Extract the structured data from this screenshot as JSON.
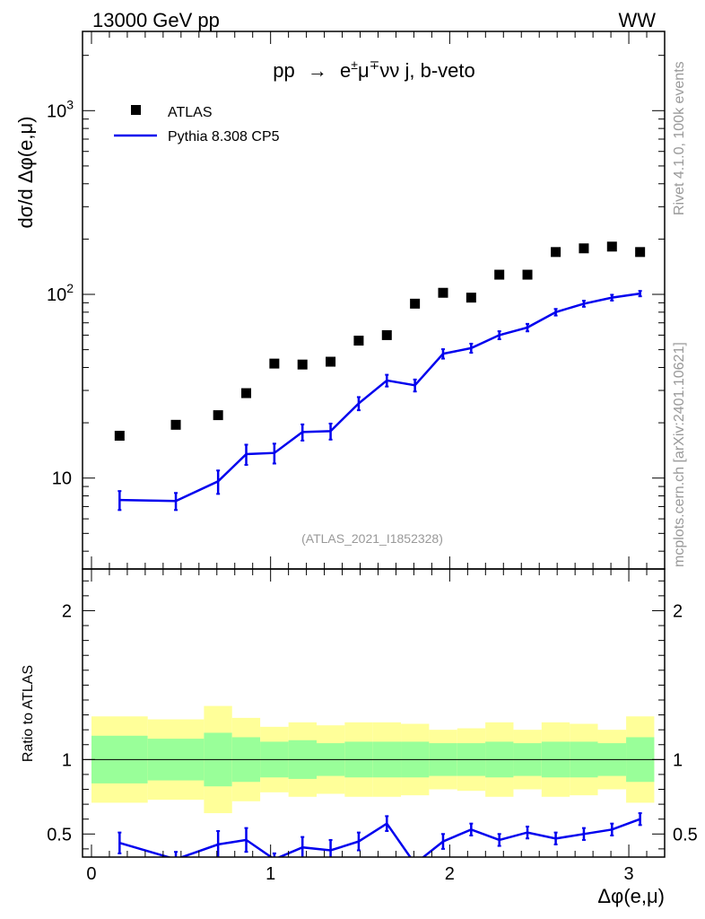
{
  "header": {
    "energy_label": "13000 GeV pp",
    "process_label": "WW"
  },
  "side_labels": {
    "rivet": "Rivet 4.1.0,  100k events",
    "mcplots": "mcplots.cern.ch [arXiv:2401.10621]"
  },
  "colors": {
    "mc_line": "#0000ee",
    "band_inner": "#99ff99",
    "band_outer": "#ffff99",
    "data_marker": "#000000",
    "analysis_label": "#999999"
  },
  "chart_data": {
    "type": "scatter",
    "title_parts": {
      "pp": "pp",
      "arrow": "→",
      "e": "e",
      "pm": "±",
      "mu": "μ",
      "mp": "∓",
      "rest": "νν j, b-veto"
    },
    "ylabel": "dσ/d Δφ(e,μ)",
    "xlabel": "Δφ(e,μ)",
    "analysis_id": "(ATLAS_2021_I1852328)",
    "xlim": [
      -0.05,
      3.2
    ],
    "ylim_main": [
      3.2,
      2700
    ],
    "ylim_ratio": [
      0.345,
      2.28
    ],
    "x_ticks": [
      "0",
      "1",
      "2",
      "3"
    ],
    "y_ticks_main": [
      "10",
      "10^2",
      "10^3"
    ],
    "ratio_ylabel": "Ratio to ATLAS",
    "ratio_ticks": [
      "0.5",
      "1",
      "2"
    ],
    "legend": [
      {
        "name": "ATLAS",
        "marker": "square"
      },
      {
        "name": "Pythia 8.308 CP5",
        "marker": "line"
      }
    ],
    "bin_edges": [
      0.0,
      0.314,
      0.628,
      0.785,
      0.942,
      1.1,
      1.257,
      1.414,
      1.571,
      1.728,
      1.885,
      2.042,
      2.199,
      2.356,
      2.513,
      2.67,
      2.827,
      2.985,
      3.142
    ],
    "x": [
      0.157,
      0.471,
      0.707,
      0.864,
      1.021,
      1.178,
      1.335,
      1.492,
      1.649,
      1.806,
      1.963,
      2.12,
      2.277,
      2.434,
      2.592,
      2.749,
      2.906,
      3.063
    ],
    "series": [
      {
        "name": "ATLAS",
        "values": [
          17.0,
          19.5,
          22.0,
          29.0,
          42.0,
          41.5,
          43.0,
          56.0,
          60.0,
          89.0,
          102.0,
          96.0,
          128.0,
          128.0,
          170.0,
          178.0,
          182.0,
          170.0
        ]
      },
      {
        "name": "Pythia 8.308 CP5",
        "values": [
          7.6,
          7.5,
          9.6,
          13.5,
          13.7,
          17.8,
          18.0,
          25.5,
          34.0,
          32.0,
          47.5,
          51.0,
          60.0,
          66.0,
          80.0,
          89.0,
          96.0,
          101.0
        ],
        "errors": [
          0.9,
          0.8,
          1.4,
          1.7,
          1.7,
          1.8,
          1.8,
          2.1,
          2.5,
          2.4,
          2.8,
          2.9,
          3.0,
          3.1,
          3.3,
          3.4,
          3.5,
          3.4
        ]
      }
    ],
    "ratio": {
      "mc_values": [
        0.44,
        0.33,
        0.43,
        0.46,
        0.33,
        0.41,
        0.39,
        0.45,
        0.57,
        0.3,
        0.45,
        0.53,
        0.46,
        0.51,
        0.47,
        0.5,
        0.53,
        0.6
      ],
      "mc_errors": [
        0.07,
        0.05,
        0.09,
        0.08,
        0.04,
        0.07,
        0.07,
        0.06,
        0.05,
        0.04,
        0.05,
        0.04,
        0.04,
        0.04,
        0.04,
        0.04,
        0.04,
        0.04
      ],
      "band_inner": [
        0.16,
        0.14,
        0.18,
        0.15,
        0.12,
        0.13,
        0.11,
        0.12,
        0.12,
        0.12,
        0.11,
        0.11,
        0.12,
        0.11,
        0.12,
        0.12,
        0.11,
        0.15
      ],
      "band_outer": [
        0.29,
        0.27,
        0.36,
        0.28,
        0.22,
        0.25,
        0.23,
        0.25,
        0.25,
        0.24,
        0.2,
        0.21,
        0.25,
        0.2,
        0.25,
        0.24,
        0.2,
        0.29
      ]
    }
  }
}
